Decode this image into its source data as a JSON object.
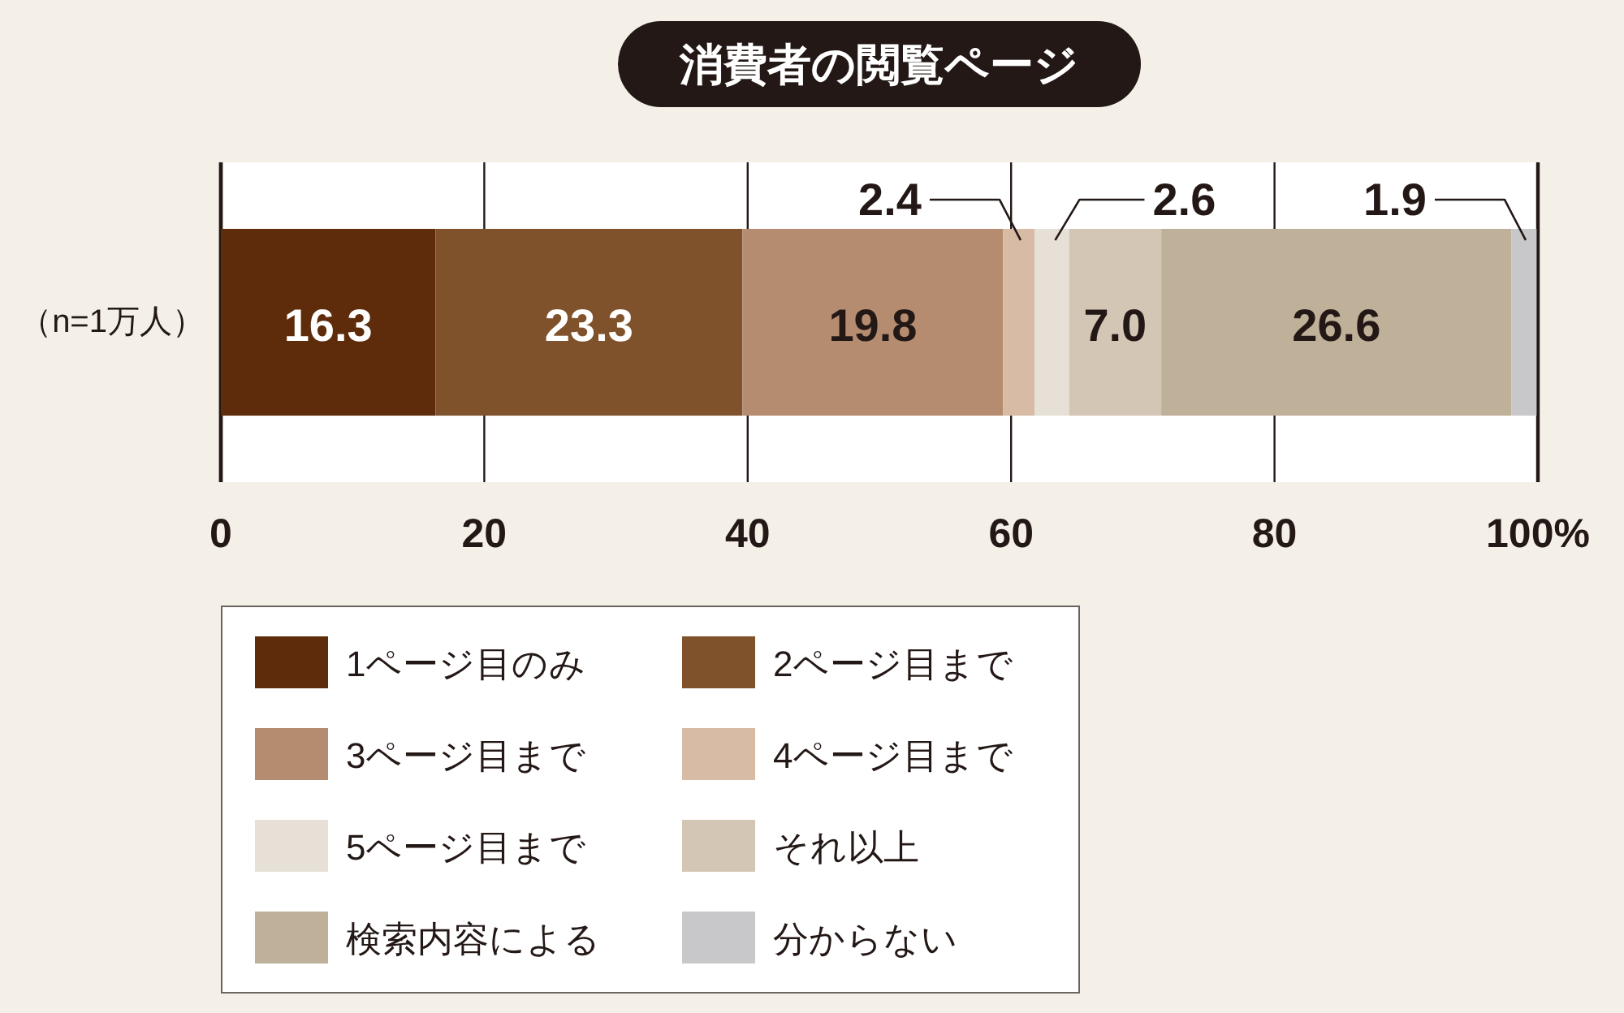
{
  "chart_data": {
    "type": "bar",
    "orientation": "horizontal",
    "stacked": true,
    "title": "消費者の閲覧ページ",
    "categories": [
      "（n=1万人）"
    ],
    "xlim": [
      0,
      100
    ],
    "xticks": [
      0,
      20,
      40,
      60,
      80,
      {
        "value": 100,
        "label": "100%"
      }
    ],
    "grid": "x",
    "legend": "bottom",
    "series": [
      {
        "name": "1ページ目のみ",
        "color": "#5e2c0b",
        "values": [
          16.3
        ],
        "value_labels": [
          "16.3"
        ]
      },
      {
        "name": "2ページ目まで",
        "color": "#80522b",
        "values": [
          23.3
        ],
        "value_labels": [
          "23.3"
        ]
      },
      {
        "name": "3ページ目まで",
        "color": "#b58c6f",
        "values": [
          19.8
        ],
        "value_labels": [
          "19.8"
        ]
      },
      {
        "name": "4ページ目まで",
        "color": "#d8bba5",
        "values": [
          2.4
        ],
        "value_labels": [
          "2.4"
        ]
      },
      {
        "name": "5ページ目まで",
        "color": "#e6e0d6",
        "values": [
          2.6
        ],
        "value_labels": [
          "2.6"
        ]
      },
      {
        "name": "それ以上",
        "color": "#d3c6b4",
        "values": [
          7.0
        ],
        "value_labels": [
          "7.0"
        ]
      },
      {
        "name": "検索内容による",
        "color": "#bfb099",
        "values": [
          26.6
        ],
        "value_labels": [
          "26.6"
        ]
      },
      {
        "name": "分からない",
        "color": "#c8c8cb",
        "values": [
          1.9
        ],
        "value_labels": [
          "1.9"
        ]
      }
    ]
  }
}
